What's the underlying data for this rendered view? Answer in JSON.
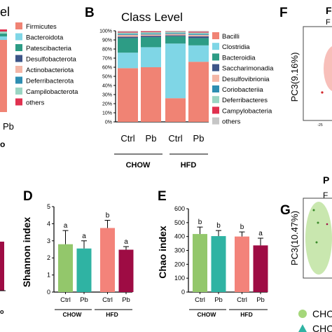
{
  "colors": {
    "Bacilli": "#f08374",
    "Clostridia": "#7fd6e6",
    "Bacteroidia": "#2d9c85",
    "Saccharimonadia": "#3d5588",
    "Desulfovibrionia": "#f4b6a6",
    "Coriobacteriia": "#2e8eb2",
    "Deferribacteres": "#9ad5c3",
    "Campylobacteria": "#e0314f",
    "others": "#c6c6c6",
    "chow_ctrl": "#93c76b",
    "chow_pb": "#2fb3a3",
    "hfd_ctrl": "#f3837a",
    "hfd_pb": "#9e0c44"
  },
  "panelA": {
    "title_fragment": "el",
    "legend": [
      "Firmicutes",
      "Bacteroidota",
      "Patescibacteria",
      "Desulfobacterota",
      "Actinobacteriota",
      "Deferribacterota",
      "Campilobacterota",
      "others"
    ],
    "legend_colors": [
      "#f08374",
      "#7fd6e6",
      "#2d9c85",
      "#3d5588",
      "#f4b6a6",
      "#2e8eb2",
      "#9ad5c3",
      "#e0314f"
    ],
    "xlabel_fragment": "Pb",
    "group_fragment": "o"
  },
  "panelB": {
    "letter": "B",
    "title": "Class Level",
    "yticks": [
      "0%",
      "10%",
      "20%",
      "30%",
      "40%",
      "50%",
      "60%",
      "70%",
      "80%",
      "90%",
      "100%"
    ],
    "groups": [
      "CHOW",
      "HFD"
    ]
  },
  "panelD": {
    "letter": "D",
    "ylabel": "Shannon index",
    "groups": [
      "CHOW",
      "HFD"
    ]
  },
  "panelE": {
    "letter": "E",
    "ylabel": "Chao index",
    "groups": [
      "CHOW",
      "HFD"
    ]
  },
  "panelC": {
    "fragment": "o"
  },
  "panelF": {
    "letter": "F",
    "title_fragment": "F",
    "subtitle_fragment": "F",
    "ylabel": "PC3(9.16%)",
    "tick_fragment": "-25"
  },
  "panelG": {
    "letter": "G",
    "title_fragment": "P",
    "subtitle_fragment": "F",
    "ylabel": "PC3(10.47%)",
    "legend": [
      "CHO",
      "CHO"
    ]
  },
  "chart_data": [
    {
      "type": "bar",
      "stacked": true,
      "title": "Class Level",
      "categories": [
        "Ctrl",
        "Pb",
        "Ctrl",
        "Pb"
      ],
      "groups": [
        "CHOW",
        "CHOW",
        "HFD",
        "HFD"
      ],
      "ylim": [
        0,
        100
      ],
      "series": [
        {
          "name": "Bacilli",
          "values": [
            59,
            60,
            26,
            66
          ]
        },
        {
          "name": "Clostridia",
          "values": [
            17,
            22,
            60,
            18
          ]
        },
        {
          "name": "Bacteroidia",
          "values": [
            16,
            11,
            8,
            8
          ]
        },
        {
          "name": "Saccharimonadia",
          "values": [
            1.5,
            1.5,
            1,
            2
          ]
        },
        {
          "name": "Desulfovibrionia",
          "values": [
            2,
            1.5,
            1.5,
            1.5
          ]
        },
        {
          "name": "Coriobacteriia",
          "values": [
            1,
            1,
            1,
            1
          ]
        },
        {
          "name": "Deferribacteres",
          "values": [
            1.5,
            1.5,
            1.5,
            1.5
          ]
        },
        {
          "name": "Campylobacteria",
          "values": [
            1,
            1,
            0.5,
            1
          ]
        },
        {
          "name": "others",
          "values": [
            1,
            0.5,
            0.5,
            1
          ]
        }
      ]
    },
    {
      "type": "bar",
      "ylabel": "Shannon index",
      "categories": [
        "Ctrl",
        "Pb",
        "Ctrl",
        "Pb"
      ],
      "groups": [
        "CHOW",
        "CHOW",
        "HFD",
        "HFD"
      ],
      "ylim": [
        0,
        5
      ],
      "yticks": [
        0,
        1,
        2,
        3,
        4,
        5
      ],
      "values": [
        2.8,
        2.55,
        3.75,
        2.48
      ],
      "errors": [
        0.8,
        0.45,
        0.45,
        0.18
      ],
      "annotations": [
        "a",
        "a",
        "b",
        "a"
      ]
    },
    {
      "type": "bar",
      "ylabel": "Chao index",
      "categories": [
        "Ctrl",
        "Pb",
        "Ctrl",
        "Pb"
      ],
      "groups": [
        "CHOW",
        "CHOW",
        "HFD",
        "HFD"
      ],
      "ylim": [
        0,
        600
      ],
      "yticks": [
        0,
        100,
        200,
        300,
        400,
        500,
        600
      ],
      "values": [
        418,
        403,
        400,
        336
      ],
      "errors": [
        50,
        40,
        33,
        52
      ],
      "annotations": [
        "b",
        "b",
        "b",
        "a"
      ]
    }
  ]
}
